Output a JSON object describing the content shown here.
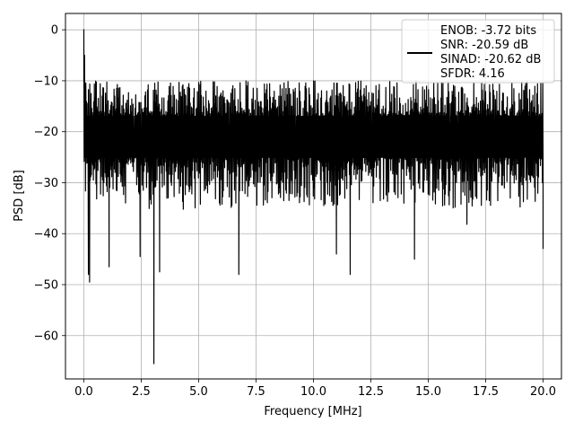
{
  "chart_data": {
    "type": "line",
    "title": "",
    "xlabel": "Frequency [MHz]",
    "ylabel": "PSD [dB]",
    "xlim": [
      -0.8,
      20.8
    ],
    "ylim": [
      -68.5,
      3.2
    ],
    "grid": true,
    "legend_position": "top-right",
    "x_ticks": [
      0.0,
      2.5,
      5.0,
      7.5,
      10.0,
      12.5,
      15.0,
      17.5,
      20.0
    ],
    "x_tick_labels": [
      "0.0",
      "2.5",
      "5.0",
      "7.5",
      "10.0",
      "12.5",
      "15.0",
      "17.5",
      "20.0"
    ],
    "y_ticks": [
      0,
      -10,
      -20,
      -30,
      -40,
      -50,
      -60
    ],
    "y_tick_labels": [
      "0",
      "−10",
      "−20",
      "−30",
      "−40",
      "−50",
      "−60"
    ],
    "series_color": "#000000",
    "series": [
      {
        "name": "",
        "x_range": [
          0.0,
          20.0
        ],
        "noise_mean_db": -20,
        "noise_top_db": [
          -17,
          -10
        ],
        "noise_bottom_db": [
          -35,
          -25
        ],
        "points": [
          {
            "x": 0.0,
            "y": 0.0
          },
          {
            "x": 0.03,
            "y": -5.0
          },
          {
            "x": 0.06,
            "y": -11.0
          },
          {
            "x": 0.1,
            "y": -20.0
          },
          {
            "x": 0.25,
            "y": -49.5
          },
          {
            "x": 0.2,
            "y": -48.0
          },
          {
            "x": 1.1,
            "y": -46.5
          },
          {
            "x": 2.45,
            "y": -44.5
          },
          {
            "x": 3.05,
            "y": -65.5
          },
          {
            "x": 3.3,
            "y": -47.5
          },
          {
            "x": 6.75,
            "y": -48.0
          },
          {
            "x": 11.6,
            "y": -48.0
          },
          {
            "x": 11.0,
            "y": -44.0
          },
          {
            "x": 14.4,
            "y": -45.0
          },
          {
            "x": 20.0,
            "y": -43.0
          }
        ]
      }
    ],
    "legend": {
      "lines": [
        "ENOB: -3.72 bits",
        "SNR: -20.59 dB",
        "SINAD: -20.62 dB",
        "SFDR: 4.16"
      ]
    }
  }
}
